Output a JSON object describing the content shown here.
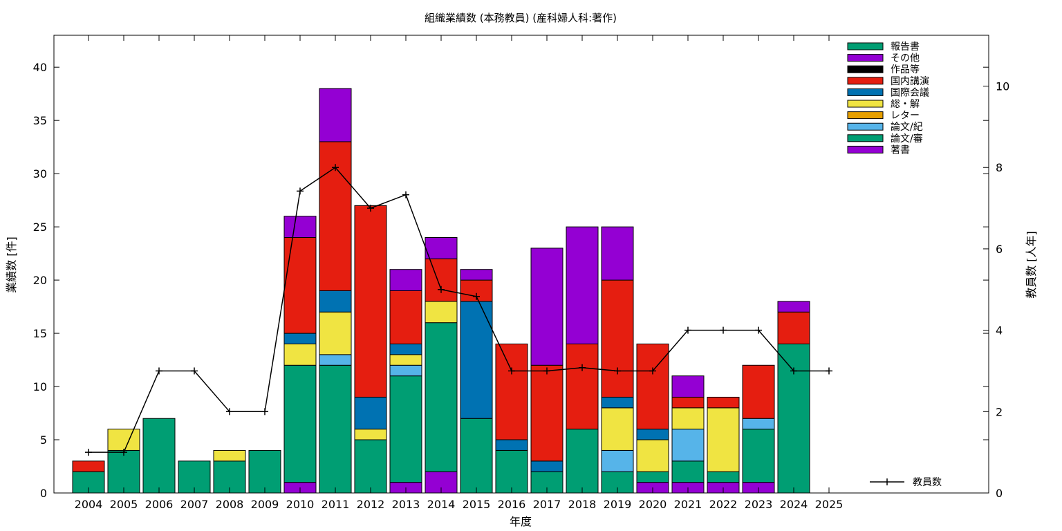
{
  "chart_data": {
    "type": "bar",
    "stacked": true,
    "title": "組織業績数 (本務教員) (産科婦人科:著作)",
    "xlabel": "年度",
    "ylabel": "業績数 [件]",
    "y2label": "教員数 [人年]",
    "ylim": [
      0,
      43
    ],
    "y2lim": [
      0,
      11.25
    ],
    "yticks": [
      0,
      5,
      10,
      15,
      20,
      25,
      30,
      35,
      40
    ],
    "y2ticks": [
      0,
      2,
      4,
      6,
      8,
      10
    ],
    "legend_position": "top-right",
    "grid": false,
    "categories": [
      "2004",
      "2005",
      "2006",
      "2007",
      "2008",
      "2009",
      "2010",
      "2011",
      "2012",
      "2013",
      "2014",
      "2015",
      "2016",
      "2017",
      "2018",
      "2019",
      "2020",
      "2021",
      "2022",
      "2023",
      "2024",
      "2025"
    ],
    "series": [
      {
        "name": "著書",
        "color": "#9400d3",
        "values": [
          0,
          0,
          0,
          0,
          0,
          0,
          1,
          0,
          0,
          1,
          2,
          0,
          0,
          0,
          0,
          0,
          1,
          1,
          1,
          1,
          0,
          0
        ]
      },
      {
        "name": "論文/審",
        "color": "#009e73",
        "values": [
          2,
          4,
          7,
          3,
          3,
          4,
          11,
          12,
          5,
          10,
          14,
          7,
          4,
          2,
          6,
          2,
          1,
          2,
          1,
          5,
          14,
          0
        ]
      },
      {
        "name": "論文/紀",
        "color": "#56b4e9",
        "values": [
          0,
          0,
          0,
          0,
          0,
          0,
          0,
          1,
          0,
          1,
          0,
          0,
          0,
          0,
          0,
          2,
          0,
          3,
          0,
          1,
          0,
          0
        ]
      },
      {
        "name": "レター",
        "color": "#e69f00",
        "values": [
          0,
          0,
          0,
          0,
          0,
          0,
          0,
          0,
          0,
          0,
          0,
          0,
          0,
          0,
          0,
          0,
          0,
          0,
          0,
          0,
          0,
          0
        ]
      },
      {
        "name": "総・解",
        "color": "#f0e442",
        "values": [
          0,
          2,
          0,
          0,
          1,
          0,
          2,
          4,
          1,
          1,
          2,
          0,
          0,
          0,
          0,
          4,
          3,
          2,
          6,
          0,
          0,
          0
        ]
      },
      {
        "name": "国際会議",
        "color": "#0072b2",
        "values": [
          0,
          0,
          0,
          0,
          0,
          0,
          1,
          2,
          3,
          1,
          0,
          11,
          1,
          1,
          0,
          1,
          1,
          0,
          0,
          0,
          0,
          0
        ]
      },
      {
        "name": "国内講演",
        "color": "#e51e10",
        "values": [
          1,
          0,
          0,
          0,
          0,
          0,
          9,
          14,
          18,
          5,
          4,
          2,
          9,
          9,
          8,
          11,
          8,
          1,
          1,
          5,
          3,
          0
        ]
      },
      {
        "name": "作品等",
        "color": "#000000",
        "values": [
          0,
          0,
          0,
          0,
          0,
          0,
          0,
          0,
          0,
          0,
          0,
          0,
          0,
          0,
          0,
          0,
          0,
          0,
          0,
          0,
          0,
          0
        ]
      },
      {
        "name": "その他",
        "color": "#9400d3",
        "values": [
          0,
          0,
          0,
          0,
          0,
          0,
          2,
          5,
          0,
          2,
          2,
          1,
          0,
          11,
          11,
          5,
          0,
          2,
          0,
          0,
          1,
          0
        ]
      },
      {
        "name": "報告書",
        "color": "#009e73",
        "values": [
          0,
          0,
          0,
          0,
          0,
          0,
          0,
          0,
          0,
          0,
          0,
          0,
          0,
          0,
          0,
          0,
          0,
          0,
          0,
          0,
          0,
          0
        ]
      }
    ],
    "line_series": {
      "name": "教員数",
      "color": "#000000",
      "axis": "y2",
      "values": [
        1,
        1,
        3,
        3,
        2,
        2,
        7.42,
        8,
        7,
        7.33,
        5,
        4.83,
        3,
        3,
        3.08,
        3,
        3,
        4,
        4,
        4,
        3,
        3
      ]
    }
  }
}
